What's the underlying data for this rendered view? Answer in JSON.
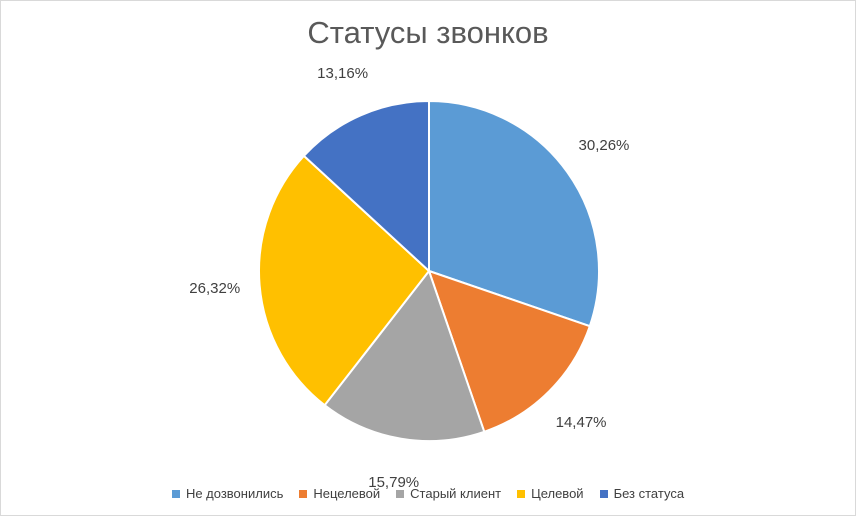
{
  "chart_data": {
    "type": "pie",
    "title": "Статусы звонков",
    "slices": [
      {
        "label": "Не дозвонились",
        "value": 30.26,
        "data_label": "30,26%",
        "color": "#5B9BD5"
      },
      {
        "label": "Нецелевой",
        "value": 14.47,
        "data_label": "14,47%",
        "color": "#ED7D31"
      },
      {
        "label": "Старый клиент",
        "value": 15.79,
        "data_label": "15,79%",
        "color": "#A5A5A5"
      },
      {
        "label": "Целевой",
        "value": 26.32,
        "data_label": "26,32%",
        "color": "#FFC000"
      },
      {
        "label": "Без статуса",
        "value": 13.16,
        "data_label": "13,16%",
        "color": "#4472C4"
      }
    ],
    "legend_position": "bottom"
  }
}
